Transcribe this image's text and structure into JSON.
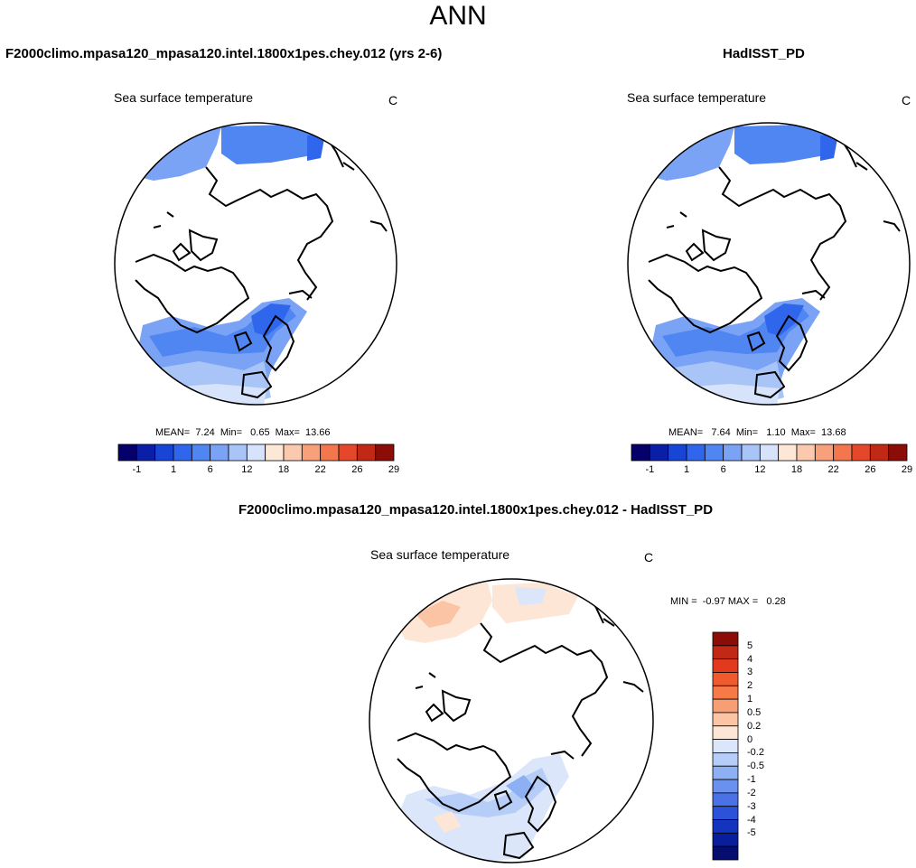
{
  "title": "ANN",
  "panels": {
    "model": {
      "title": "F2000climo.mpasa120_mpasa120.intel.1800x1pes.chey.012 (yrs 2-6)",
      "variable": "Sea surface temperature",
      "units": "C",
      "stats": "MEAN=  7.24  Min=   0.65  Max=  13.66"
    },
    "obs": {
      "title": "HadISST_PD",
      "variable": "Sea surface temperature",
      "units": "C",
      "stats": "MEAN=   7.64  Min=   1.10  Max=  13.68"
    },
    "diff": {
      "title": "F2000climo.mpasa120_mpasa120.intel.1800x1pes.chey.012 - HadISST_PD",
      "variable": "Sea surface temperature",
      "units": "C",
      "stats": "MIN =  -0.97 MAX =   0.28"
    }
  },
  "colorbar_main": {
    "colors": [
      "#06006b",
      "#0a1fa6",
      "#1845d6",
      "#2f66ec",
      "#4f86f2",
      "#7ba3f5",
      "#a9c4f7",
      "#d6e3fa",
      "#fde8d8",
      "#fbc9ad",
      "#f8a07a",
      "#f3764d",
      "#e5472a",
      "#c12815",
      "#8c0d07"
    ],
    "ticks": [
      "-1",
      "1",
      "6",
      "12",
      "18",
      "22",
      "26",
      "29"
    ]
  },
  "colorbar_diff": {
    "colors": [
      "#8c0d07",
      "#c12815",
      "#e33a1e",
      "#f05a2c",
      "#f67a48",
      "#f89e75",
      "#fbc4a5",
      "#fde6d6",
      "#dbe6fa",
      "#b6cdf7",
      "#8daff3",
      "#6a91ee",
      "#4a72e6",
      "#2c52d9",
      "#1434c0",
      "#081e9c",
      "#050e6e"
    ],
    "ticks": [
      "5",
      "4",
      "3",
      "2",
      "1",
      "0.5",
      "0.2",
      "0",
      "-0.2",
      "-0.5",
      "-1",
      "-2",
      "-3",
      "-4",
      "-5"
    ]
  }
}
